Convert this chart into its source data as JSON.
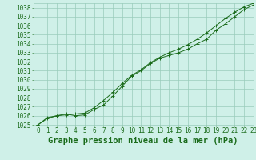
{
  "title": "Graphe pression niveau de la mer (hPa)",
  "background_color": "#cff0e8",
  "grid_color": "#99ccbb",
  "line_color": "#1a6b1a",
  "marker_color": "#1a6b1a",
  "xlim": [
    -0.5,
    23
  ],
  "ylim": [
    1025,
    1038.5
  ],
  "xticks": [
    0,
    1,
    2,
    3,
    4,
    5,
    6,
    7,
    8,
    9,
    10,
    11,
    12,
    13,
    14,
    15,
    16,
    17,
    18,
    19,
    20,
    21,
    22,
    23
  ],
  "yticks": [
    1025,
    1026,
    1027,
    1028,
    1029,
    1030,
    1031,
    1032,
    1033,
    1034,
    1035,
    1036,
    1037,
    1038
  ],
  "series1_x": [
    0,
    1,
    2,
    3,
    4,
    5,
    6,
    7,
    8,
    9,
    10,
    11,
    12,
    13,
    14,
    15,
    16,
    17,
    18,
    19,
    20,
    21,
    22,
    23
  ],
  "series1_y": [
    1025.0,
    1025.8,
    1026.0,
    1026.2,
    1026.0,
    1026.1,
    1026.7,
    1027.2,
    1028.2,
    1029.3,
    1030.4,
    1031.0,
    1031.8,
    1032.4,
    1032.7,
    1033.0,
    1033.4,
    1034.0,
    1034.5,
    1035.5,
    1036.2,
    1037.0,
    1037.8,
    1038.3
  ],
  "series2_x": [
    0,
    1,
    2,
    3,
    4,
    5,
    6,
    7,
    8,
    9,
    10,
    11,
    12,
    13,
    14,
    15,
    16,
    17,
    18,
    19,
    20,
    21,
    22,
    23
  ],
  "series2_y": [
    1025.0,
    1025.7,
    1026.0,
    1026.1,
    1026.2,
    1026.3,
    1026.9,
    1027.7,
    1028.6,
    1029.6,
    1030.5,
    1031.1,
    1031.9,
    1032.5,
    1033.0,
    1033.4,
    1033.9,
    1034.5,
    1035.2,
    1036.0,
    1036.8,
    1037.5,
    1038.1,
    1038.5
  ],
  "title_fontsize": 7.5,
  "tick_fontsize": 5.5,
  "title_color": "#1a6b1a",
  "tick_color": "#1a6b1a",
  "spine_color": "#99ccbb"
}
